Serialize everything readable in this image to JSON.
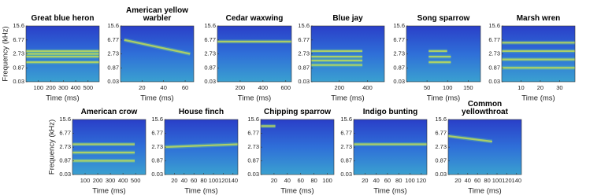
{
  "chart_data": [
    {
      "type": "spectrogram",
      "title": "Great blue heron",
      "xlabel": "Time (ms)",
      "ylabel": "Frequency (kHz)",
      "xlim": [
        0,
        590
      ],
      "xticks": [
        100,
        200,
        300,
        400,
        500
      ],
      "ylim": [
        0.03,
        15.6
      ],
      "yticks": [
        15.6,
        6.77,
        2.73,
        0.87,
        0.03
      ],
      "yscale": "mel"
    },
    {
      "type": "spectrogram",
      "title": "American yellow warbler",
      "xlabel": "Time (ms)",
      "xlim": [
        0,
        68
      ],
      "xticks": [
        20,
        40,
        60
      ],
      "ylim": [
        0.03,
        15.6
      ],
      "yticks": [
        15.6,
        6.77,
        2.73,
        0.87,
        0.03
      ],
      "yscale": "mel"
    },
    {
      "type": "spectrogram",
      "title": "Cedar waxwing",
      "xlabel": "Time (ms)",
      "xlim": [
        0,
        650
      ],
      "xticks": [
        200,
        400,
        600
      ],
      "ylim": [
        0.03,
        15.6
      ],
      "yticks": [
        15.6,
        6.77,
        2.73,
        0.87,
        0.03
      ],
      "yscale": "mel"
    },
    {
      "type": "spectrogram",
      "title": "Blue jay",
      "xlabel": "Time (ms)",
      "xlim": [
        0,
        520
      ],
      "xticks": [
        200,
        400
      ],
      "ylim": [
        0.03,
        15.6
      ],
      "yticks": [
        15.6,
        6.77,
        2.73,
        0.87,
        0.03
      ],
      "yscale": "mel"
    },
    {
      "type": "spectrogram",
      "title": "Song sparrow",
      "xlabel": "Time (ms)",
      "xlim": [
        0,
        180
      ],
      "xticks": [
        50,
        100,
        150
      ],
      "ylim": [
        0.03,
        15.6
      ],
      "yticks": [
        15.6,
        6.77,
        2.73,
        0.87,
        0.03
      ],
      "yscale": "mel"
    },
    {
      "type": "spectrogram",
      "title": "Marsh wren",
      "xlabel": "Time (ms)",
      "xlim": [
        0,
        38
      ],
      "xticks": [
        10,
        20,
        30
      ],
      "ylim": [
        0.03,
        15.6
      ],
      "yticks": [
        15.6,
        6.77,
        2.73,
        0.87,
        0.03
      ],
      "yscale": "mel"
    },
    {
      "type": "spectrogram",
      "title": "American crow",
      "xlabel": "Time (ms)",
      "ylabel": "Frequency (kHz)",
      "xlim": [
        0,
        580
      ],
      "xticks": [
        100,
        200,
        300,
        400,
        500
      ],
      "ylim": [
        0.03,
        15.6
      ],
      "yticks": [
        15.6,
        6.77,
        2.73,
        0.87,
        0.03
      ],
      "yscale": "mel"
    },
    {
      "type": "spectrogram",
      "title": "House finch",
      "xlabel": "Time (ms)",
      "xlim": [
        0,
        150
      ],
      "xticks": [
        20,
        40,
        60,
        80,
        100,
        120,
        140
      ],
      "ylim": [
        0.03,
        15.6
      ],
      "yticks": [
        15.6,
        6.77,
        2.73,
        0.87,
        0.03
      ],
      "yscale": "mel"
    },
    {
      "type": "spectrogram",
      "title": "Chipping sparrow",
      "xlabel": "Time (ms)",
      "xlim": [
        0,
        110
      ],
      "xticks": [
        20,
        40,
        60,
        80,
        100
      ],
      "ylim": [
        0.03,
        15.6
      ],
      "yticks": [
        15.6,
        6.77,
        2.73,
        0.87,
        0.03
      ],
      "yscale": "mel"
    },
    {
      "type": "spectrogram",
      "title": "Indigo bunting",
      "xlabel": "Time (ms)",
      "xlim": [
        0,
        130
      ],
      "xticks": [
        20,
        40,
        60,
        80,
        100,
        120
      ],
      "ylim": [
        0.03,
        15.6
      ],
      "yticks": [
        15.6,
        6.77,
        2.73,
        0.87,
        0.03
      ],
      "yscale": "mel"
    },
    {
      "type": "spectrogram",
      "title": "Common yellowthroat",
      "xlabel": "Time (ms)",
      "xlim": [
        0,
        150
      ],
      "xticks": [
        20,
        40,
        60,
        80,
        100,
        120,
        140
      ],
      "ylim": [
        0.03,
        15.6
      ],
      "yticks": [
        15.6,
        6.77,
        2.73,
        0.87,
        0.03
      ],
      "yscale": "mel"
    }
  ]
}
